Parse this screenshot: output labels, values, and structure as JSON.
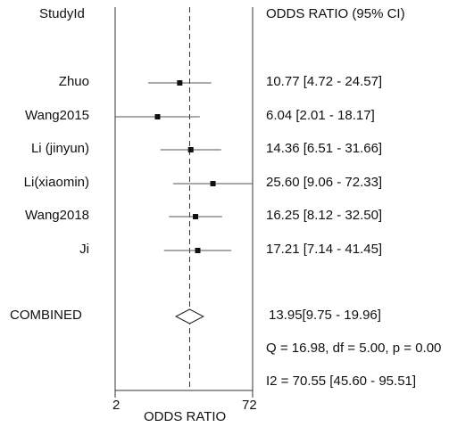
{
  "chart_data": {
    "type": "forest",
    "study_header": "StudyId",
    "ci_header": "ODDS RATIO (95% CI)",
    "xlabel": "ODDS RATIO",
    "x_ticks": [
      "2",
      "72"
    ],
    "xlim": [
      2,
      72
    ],
    "x_scale": "log",
    "reference_line": 13.95,
    "studies": [
      {
        "name": "Zhuo",
        "or": 10.77,
        "lower": 4.72,
        "upper": 24.57,
        "ci_text": "10.77 [4.72 - 24.57]"
      },
      {
        "name": "Wang2015",
        "or": 6.04,
        "lower": 2.01,
        "upper": 18.17,
        "ci_text": "6.04 [2.01 - 18.17]"
      },
      {
        "name": "Li (jinyun)",
        "or": 14.36,
        "lower": 6.51,
        "upper": 31.66,
        "ci_text": "14.36 [6.51 - 31.66]"
      },
      {
        "name": "Li(xiaomin)",
        "or": 25.6,
        "lower": 9.06,
        "upper": 72.33,
        "ci_text": "25.60 [9.06 - 72.33]"
      },
      {
        "name": "Wang2018",
        "or": 16.25,
        "lower": 8.12,
        "upper": 32.5,
        "ci_text": "16.25 [8.12 - 32.50]"
      },
      {
        "name": "Ji",
        "or": 17.21,
        "lower": 7.14,
        "upper": 41.45,
        "ci_text": "17.21 [7.14 - 41.45]"
      }
    ],
    "combined": {
      "name": "COMBINED",
      "or": 13.95,
      "lower": 9.75,
      "upper": 19.96,
      "ci_text": "13.95[9.75 - 19.96]"
    },
    "heterogeneity_q": "Q = 16.98, df = 5.00, p =  0.00",
    "heterogeneity_i2": "I2 = 70.55 [45.60 - 95.51]"
  }
}
